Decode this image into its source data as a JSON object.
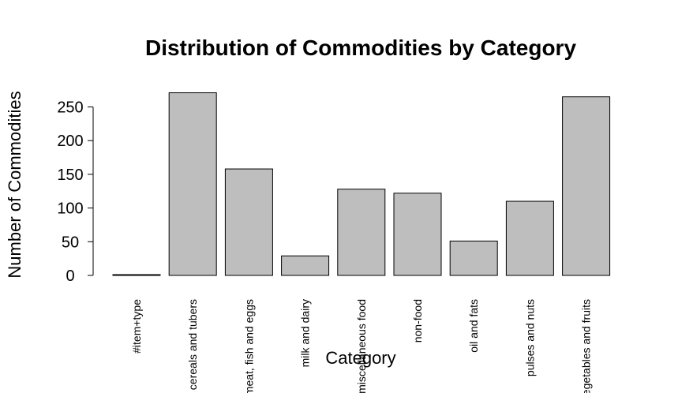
{
  "chart_data": {
    "type": "bar",
    "title": "Distribution of Commodities by Category",
    "xlabel": "Category",
    "ylabel": "Number of Commodities",
    "categories": [
      "#item+type",
      "cereals and tubers",
      "meat, fish and eggs",
      "milk and dairy",
      "miscellaneous food",
      "non-food",
      "oil and fats",
      "pulses and nuts",
      "vegetables and fruits"
    ],
    "values": [
      1,
      271,
      158,
      29,
      128,
      122,
      51,
      110,
      265
    ],
    "yticks": [
      0,
      50,
      100,
      150,
      200,
      250
    ],
    "ylim": [
      0,
      271
    ],
    "bar_color": "#bebebe",
    "grid": false
  }
}
